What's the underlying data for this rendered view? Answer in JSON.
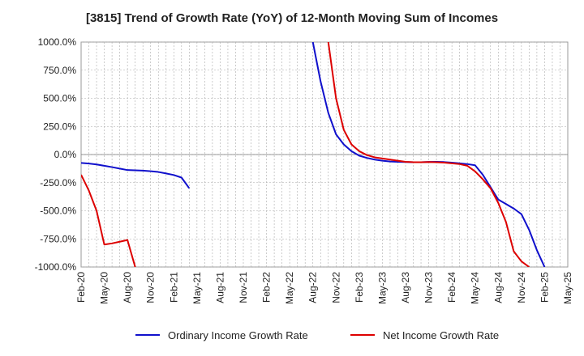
{
  "chart_data": {
    "type": "line",
    "title": "[3815]  Trend of Growth Rate (YoY) of 12-Month Moving Sum of Incomes",
    "xlabel": "",
    "ylabel": "",
    "ylim": [
      -1000,
      1000
    ],
    "yticks": [
      1000,
      750,
      500,
      250,
      0,
      -250,
      -500,
      -750,
      -1000
    ],
    "ytick_labels": [
      "1000.0%",
      "750.0%",
      "500.0%",
      "250.0%",
      "0.0%",
      "-250.0%",
      "-500.0%",
      "-750.0%",
      "-1000.0%"
    ],
    "x_ticks": [
      "Feb-20",
      "May-20",
      "Aug-20",
      "Nov-20",
      "Feb-21",
      "May-21",
      "Aug-21",
      "Nov-21",
      "Feb-22",
      "May-22",
      "Aug-22",
      "Nov-22",
      "Feb-23",
      "May-23",
      "Aug-23",
      "Nov-23",
      "Feb-24",
      "May-24",
      "Aug-24",
      "Nov-24",
      "Feb-25",
      "May-25"
    ],
    "grid": true,
    "legend_position": "bottom",
    "series": [
      {
        "name": "Ordinary Income Growth Rate",
        "color": "#1010cc",
        "points": [
          [
            0,
            -75
          ],
          [
            1,
            -80
          ],
          [
            2,
            -88
          ],
          [
            3,
            -100
          ],
          [
            4,
            -112
          ],
          [
            5,
            -125
          ],
          [
            6,
            -138
          ],
          [
            7,
            -140
          ],
          [
            8,
            -143
          ],
          [
            9,
            -148
          ],
          [
            10,
            -155
          ],
          [
            11,
            -168
          ],
          [
            12,
            -182
          ],
          [
            13,
            -205
          ],
          [
            14,
            -300
          ]
        ]
      },
      {
        "name": "Ordinary Income Growth Rate",
        "color": "#1010cc",
        "points": [
          [
            30,
            1000
          ],
          [
            31,
            650
          ],
          [
            32,
            370
          ],
          [
            33,
            180
          ],
          [
            34,
            90
          ],
          [
            35,
            30
          ],
          [
            36,
            -10
          ],
          [
            37,
            -30
          ],
          [
            38,
            -45
          ],
          [
            39,
            -55
          ],
          [
            40,
            -62
          ],
          [
            41,
            -65
          ],
          [
            42,
            -67
          ],
          [
            43,
            -68
          ],
          [
            44,
            -68
          ],
          [
            45,
            -66
          ],
          [
            46,
            -65
          ],
          [
            47,
            -67
          ],
          [
            48,
            -72
          ],
          [
            49,
            -78
          ],
          [
            50,
            -85
          ],
          [
            51,
            -95
          ],
          [
            52,
            -180
          ],
          [
            53,
            -290
          ],
          [
            54,
            -400
          ],
          [
            55,
            -440
          ],
          [
            56,
            -480
          ],
          [
            57,
            -530
          ],
          [
            58,
            -670
          ],
          [
            59,
            -850
          ],
          [
            60,
            -1000
          ]
        ]
      },
      {
        "name": "Net Income Growth Rate",
        "color": "#dd0000",
        "points": [
          [
            0,
            -180
          ],
          [
            1,
            -320
          ],
          [
            2,
            -500
          ],
          [
            3,
            -800
          ],
          [
            4,
            -790
          ],
          [
            5,
            -775
          ],
          [
            6,
            -760
          ],
          [
            7,
            -1000
          ]
        ]
      },
      {
        "name": "Net Income Growth Rate",
        "color": "#dd0000",
        "points": [
          [
            32,
            1000
          ],
          [
            33,
            500
          ],
          [
            34,
            220
          ],
          [
            35,
            90
          ],
          [
            36,
            30
          ],
          [
            37,
            -5
          ],
          [
            38,
            -25
          ],
          [
            39,
            -35
          ],
          [
            40,
            -45
          ],
          [
            41,
            -55
          ],
          [
            42,
            -65
          ],
          [
            43,
            -68
          ],
          [
            44,
            -68
          ],
          [
            45,
            -67
          ],
          [
            46,
            -68
          ],
          [
            47,
            -72
          ],
          [
            48,
            -78
          ],
          [
            49,
            -85
          ],
          [
            50,
            -100
          ],
          [
            51,
            -150
          ],
          [
            52,
            -220
          ],
          [
            53,
            -300
          ],
          [
            54,
            -430
          ],
          [
            55,
            -600
          ],
          [
            56,
            -860
          ],
          [
            57,
            -950
          ],
          [
            58,
            -1000
          ]
        ]
      }
    ],
    "legend": [
      {
        "label": "Ordinary Income Growth Rate",
        "color": "#1010cc"
      },
      {
        "label": "Net Income Growth Rate",
        "color": "#dd0000"
      }
    ]
  }
}
